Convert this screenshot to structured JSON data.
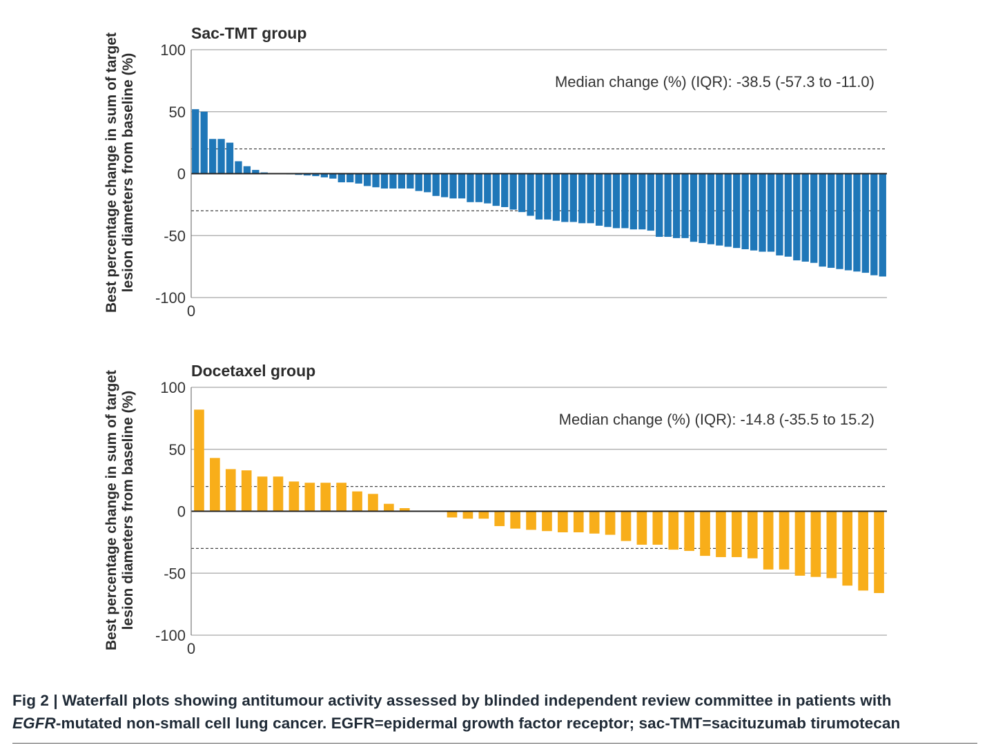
{
  "colors": {
    "sac": "#1f77b8",
    "doc": "#f8ae1a",
    "grid": "#b5b5b5",
    "axis": "#222222",
    "text": "#333333"
  },
  "chart_data": [
    {
      "type": "bar",
      "title": "Sac-TMT group",
      "ylabel": "Best percentage change in sum of target lesion diameters from baseline (%)",
      "ylabel_lines": [
        "Best percentage change in sum of target",
        "lesion diameters from baseline (%)"
      ],
      "ylim": [
        -100,
        100
      ],
      "yticks": [
        -100,
        -50,
        0,
        50,
        100
      ],
      "x_start_label": "0",
      "threshold_lines": [
        20,
        -30
      ],
      "annotation": "Median change (%) (IQR): -38.5 (-57.3 to -11.0)",
      "values": [
        52,
        50,
        28,
        28,
        25,
        10,
        6,
        3,
        1,
        0.3,
        -0.3,
        -0.6,
        -1,
        -1.5,
        -2,
        -3,
        -4,
        -7,
        -7,
        -8,
        -10,
        -11,
        -12,
        -12,
        -12,
        -12,
        -14,
        -15,
        -18,
        -19,
        -20,
        -20,
        -23,
        -23,
        -24,
        -26,
        -27,
        -29,
        -31,
        -34,
        -37,
        -37,
        -38,
        -39,
        -39,
        -40,
        -40,
        -42,
        -43,
        -44,
        -44,
        -45,
        -45,
        -46,
        -51,
        -51,
        -52,
        -52,
        -55,
        -56,
        -57,
        -58,
        -59,
        -60,
        -61,
        -62,
        -63,
        -63,
        -66,
        -67,
        -70,
        -71,
        -72,
        -75,
        -76,
        -77,
        -78,
        -79,
        -80,
        -82,
        -83
      ]
    },
    {
      "type": "bar",
      "title": "Docetaxel group",
      "ylabel": "Best percentage change in sum of target lesion diameters from baseline (%)",
      "ylabel_lines": [
        "Best percentage change in sum of target",
        "lesion diameters from baseline (%)"
      ],
      "ylim": [
        -100,
        100
      ],
      "yticks": [
        -100,
        -50,
        0,
        50,
        100
      ],
      "x_start_label": "0",
      "threshold_lines": [
        20,
        -30
      ],
      "annotation": "Median change (%) (IQR): -14.8 (-35.5 to 15.2)",
      "values": [
        82,
        43,
        34,
        33,
        28,
        28,
        24,
        23,
        23,
        23,
        16,
        14,
        6,
        2.5,
        0.4,
        -0.5,
        -5,
        -6,
        -6,
        -12,
        -14,
        -15,
        -16,
        -17,
        -17,
        -18,
        -19,
        -24,
        -27,
        -27,
        -31,
        -32,
        -36,
        -37,
        -37,
        -38,
        -47,
        -47,
        -52,
        -53,
        -54,
        -60,
        -64,
        -66
      ]
    }
  ],
  "caption": {
    "line1": "Fig 2 | Waterfall plots showing antitumour activity assessed by blinded independent review committee in patients with",
    "italic": "EGFR",
    "line2_rest": "-mutated non-small cell lung cancer. EGFR=epidermal growth factor receptor; sac-TMT=sacituzumab tirumotecan"
  }
}
